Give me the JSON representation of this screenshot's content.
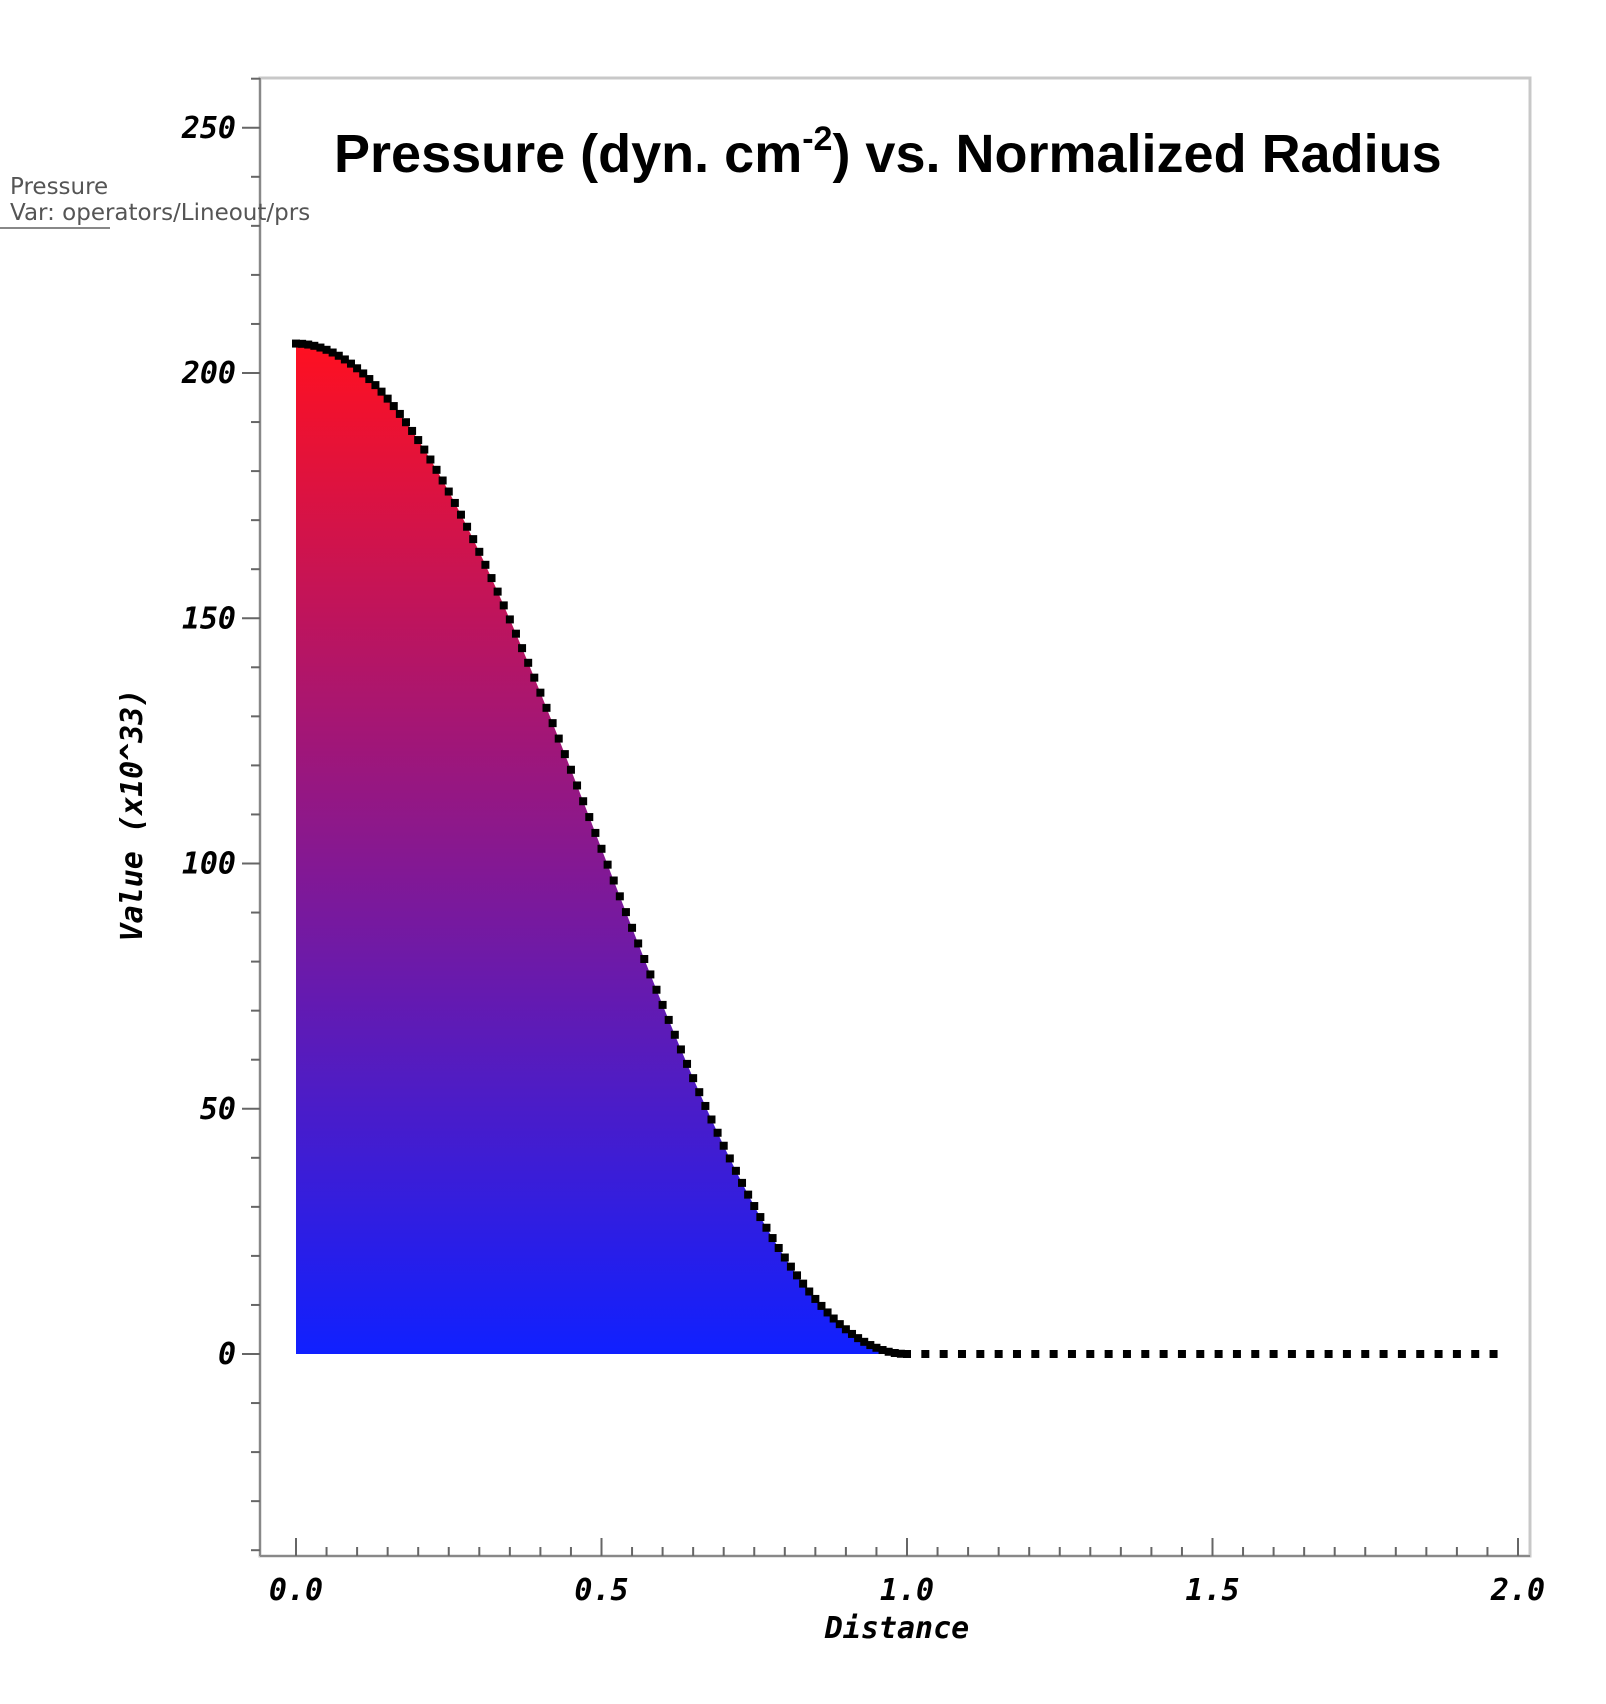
{
  "chart_data": {
    "type": "area",
    "title": {
      "main": "Pressure (dyn. cm",
      "sup": "-2",
      "rest": ") vs. Normalized Radius"
    },
    "xlabel": "Distance",
    "ylabel": "Value (x10^33)",
    "xlim": [
      -0.05,
      2.02
    ],
    "ylim": [
      -40,
      260
    ],
    "xticks": [
      "0.0",
      "0.5",
      "1.0",
      "1.5",
      "2.0"
    ],
    "yticks": [
      "0",
      "50",
      "100",
      "150",
      "200",
      "250"
    ],
    "grid": false,
    "legend": {
      "name": "Pressure",
      "var": "Var: operators/Lineout/prs",
      "placement": "top-left"
    },
    "fill_gradient": {
      "top": "#ff1020",
      "bottom": "#1020ff"
    },
    "line_color": "#000000",
    "series": [
      {
        "profile": "smooth-decay",
        "peak_x": 0.0,
        "peak_y": 206,
        "zero_x": 1.0,
        "x_start": 0.0,
        "x_end": 1.98,
        "dense_step": 0.01,
        "sparse_step": 0.03
      }
    ]
  }
}
